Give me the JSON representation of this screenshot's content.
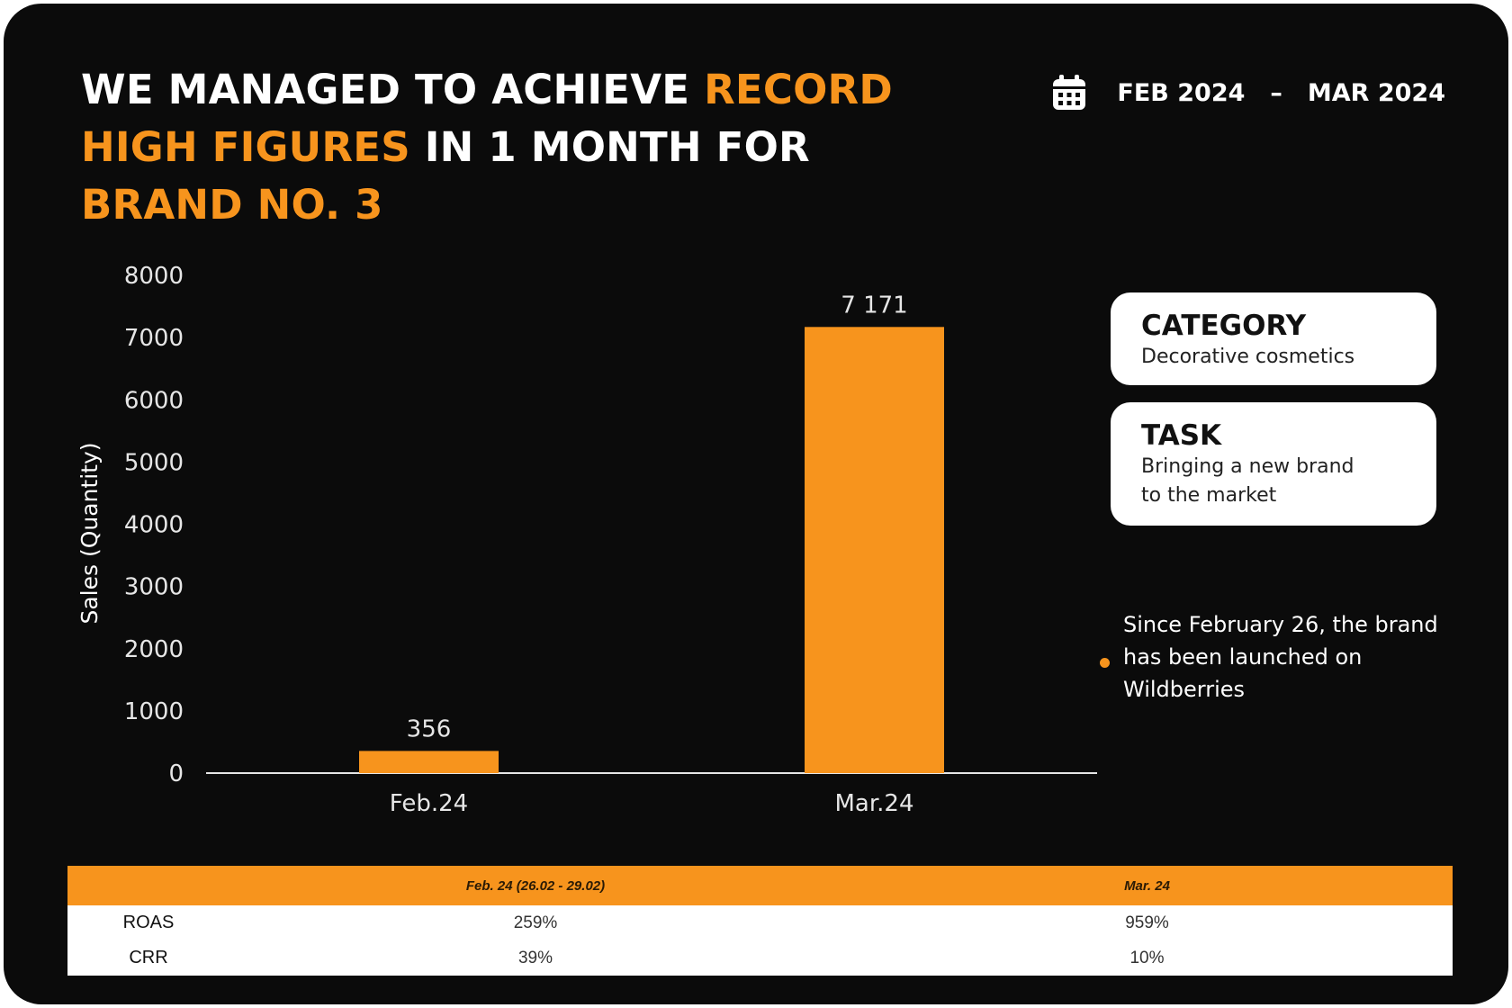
{
  "headline": {
    "p1": "WE MANAGED TO ACHIEVE ",
    "h1": "RECORD HIGH FIGURES",
    "p2": " IN 1 MONTH FOR ",
    "h2": "BRAND NO. 3"
  },
  "period": {
    "start": "FEB 2024",
    "separator": "–",
    "end": "MAR 2024",
    "icon": "calendar-icon"
  },
  "colors": {
    "accent": "#f7941d",
    "background": "#0b0b0b",
    "text": "#ffffff"
  },
  "chart_data": {
    "type": "bar",
    "categories": [
      "Feb.24",
      "Mar.24"
    ],
    "values": [
      356,
      7171
    ],
    "value_labels": [
      "356",
      "7 171"
    ],
    "xlabel": "",
    "ylabel": "Sales (Quantity)",
    "ylim": [
      0,
      8000
    ],
    "yticks": [
      "0",
      "1000",
      "2000",
      "3000",
      "4000",
      "5000",
      "6000",
      "7000",
      "8000"
    ],
    "grid": false,
    "legend": "none"
  },
  "cards": [
    {
      "title": "CATEGORY",
      "text": "Decorative cosmetics"
    },
    {
      "title": "TASK",
      "text": "Bringing a new brand to the market"
    }
  ],
  "note": "Since February 26, the brand has been launched on Wildberries",
  "table": {
    "headers": [
      "",
      "Feb. 24 (26.02 - 29.02)",
      "Mar. 24"
    ],
    "rows": [
      {
        "label": "ROAS",
        "values": [
          "259%",
          "959%"
        ]
      },
      {
        "label": "CRR",
        "values": [
          "39%",
          "10%"
        ]
      }
    ]
  }
}
